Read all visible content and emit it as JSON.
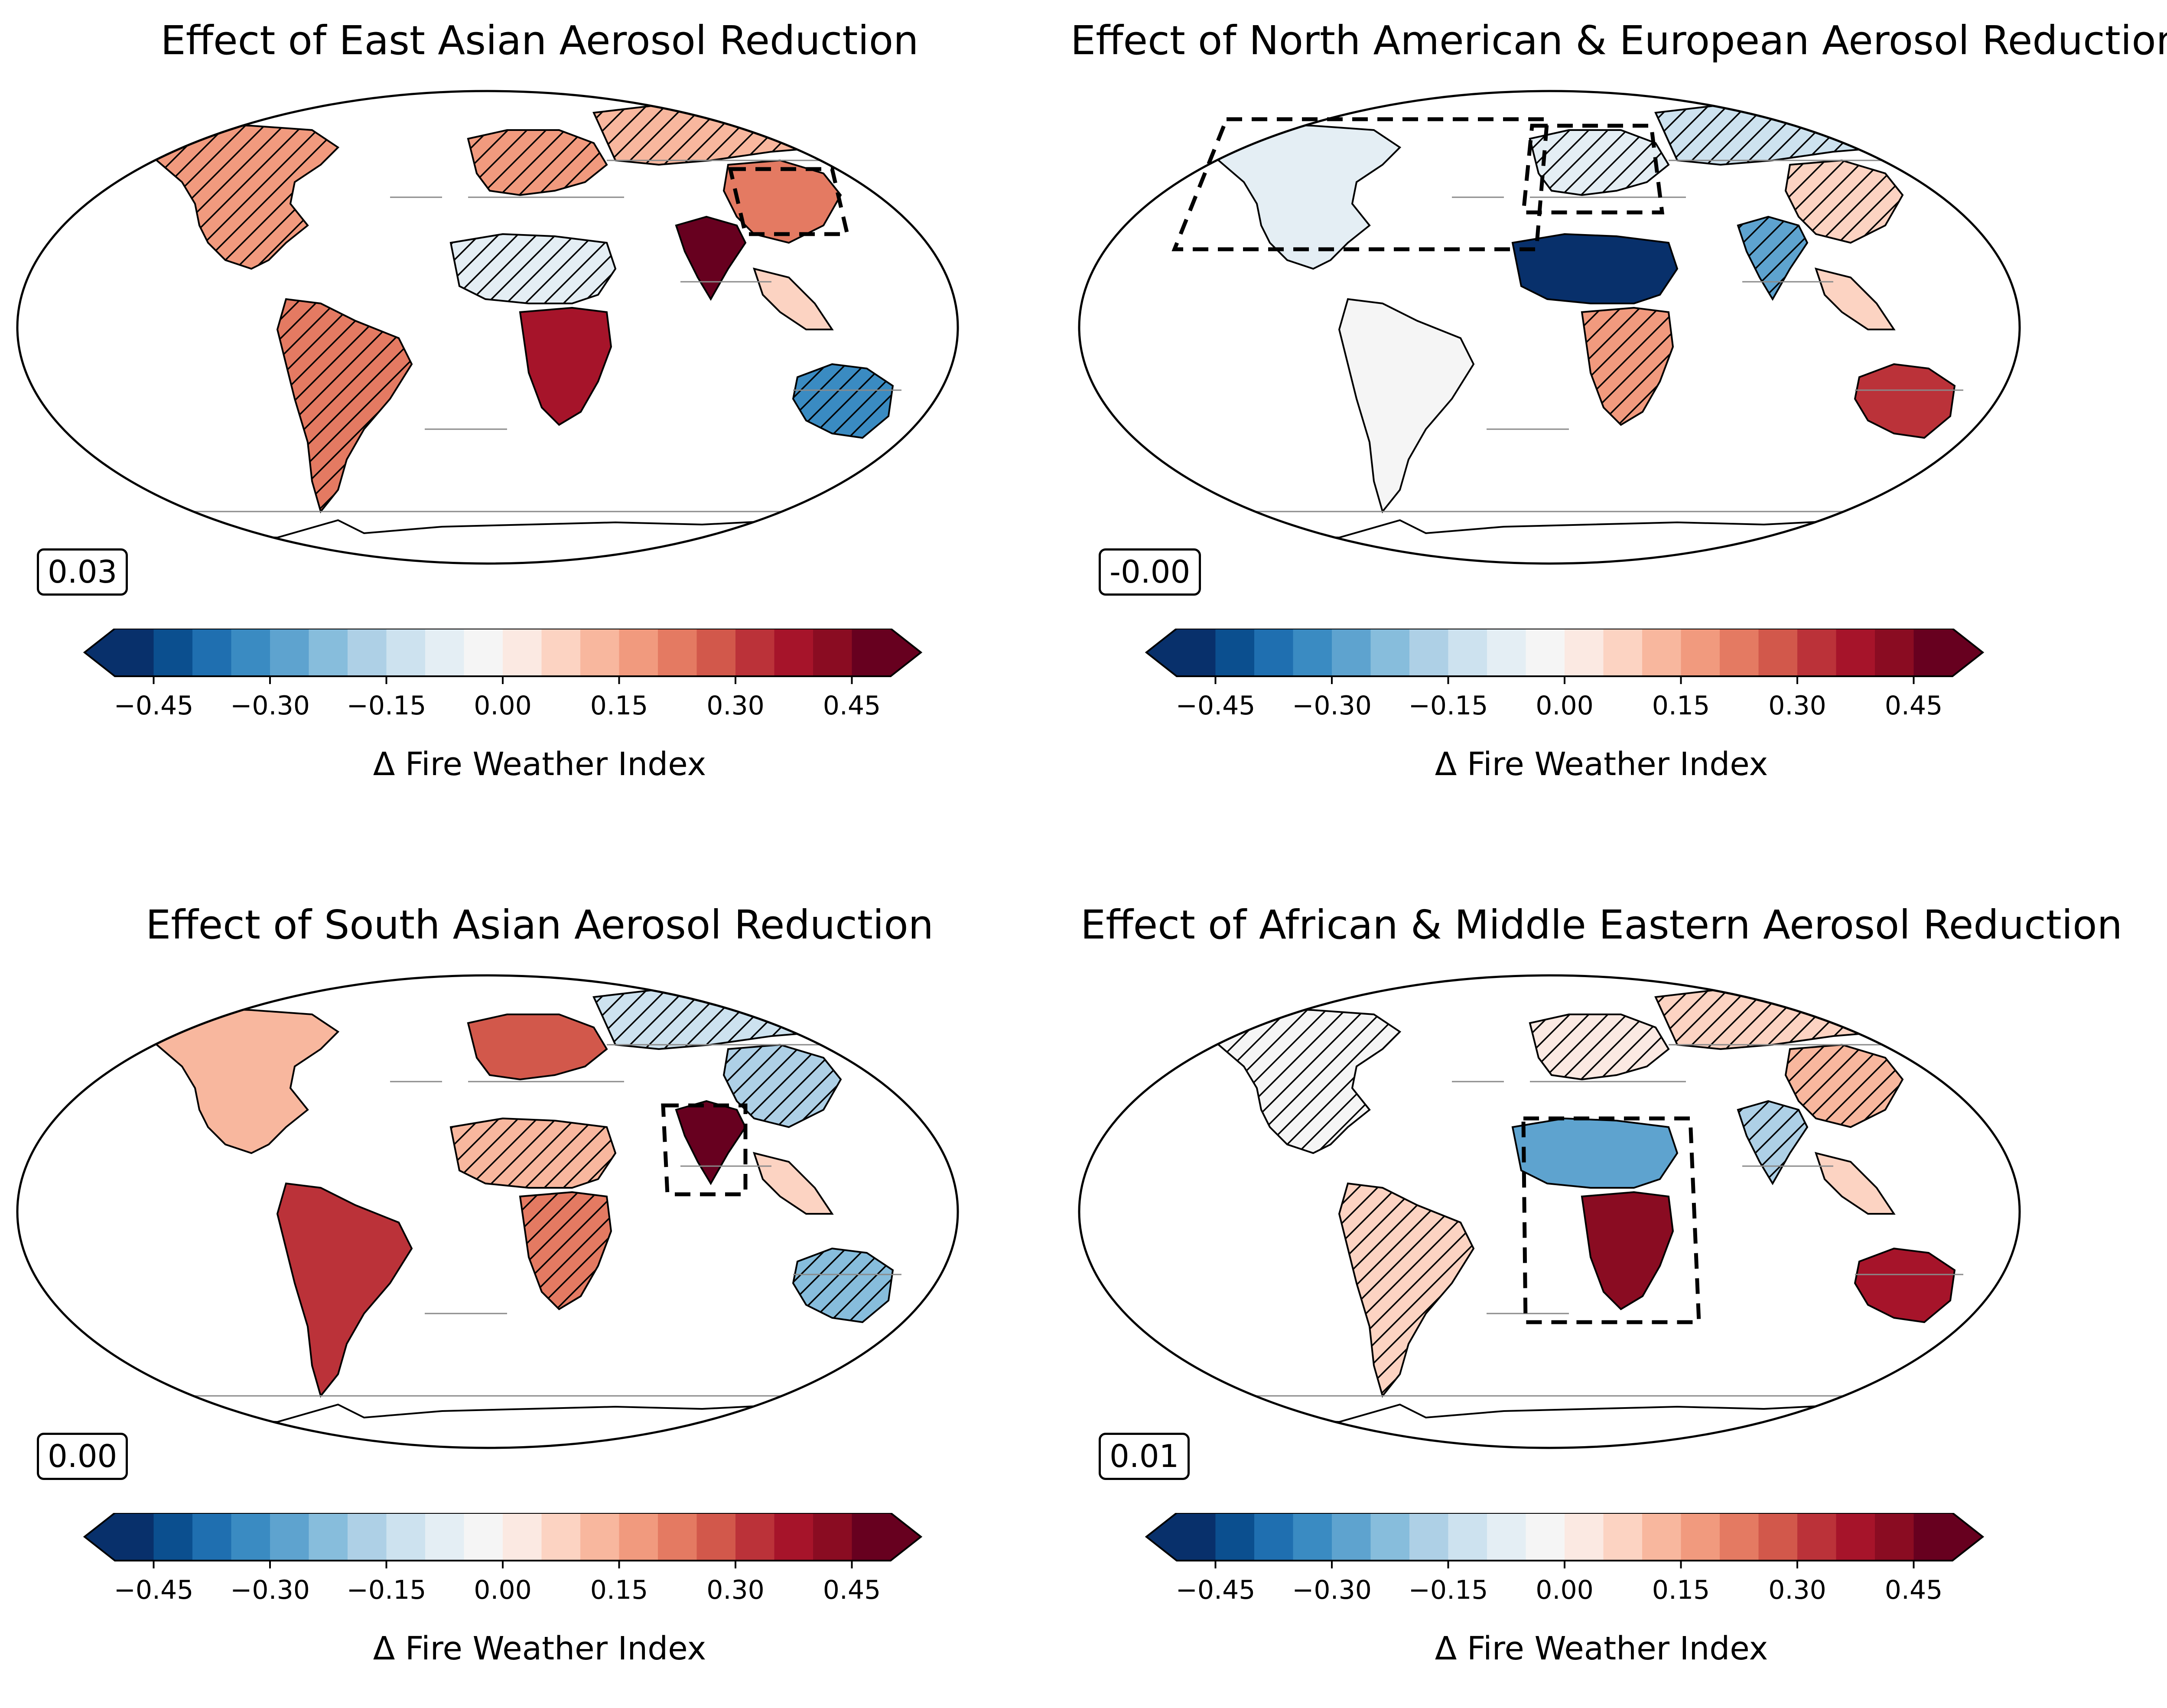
{
  "panels": [
    {
      "title": "Effect of East Asian Aerosol Reduction",
      "global_mean": "0.03",
      "colorbar_label": "Δ Fire Weather Index",
      "colorbar_ticks": [
        "−0.45",
        "−0.30",
        "−0.15",
        "0.00",
        "0.15",
        "0.30",
        "0.45"
      ],
      "target_region": "east-asia"
    },
    {
      "title": "Effect of North American & European Aerosol Reduction",
      "global_mean": "-0.00",
      "colorbar_label": "Δ Fire Weather Index",
      "colorbar_ticks": [
        "−0.45",
        "−0.30",
        "−0.15",
        "0.00",
        "0.15",
        "0.30",
        "0.45"
      ],
      "target_region": "north-america-europe"
    },
    {
      "title": "Effect of South Asian Aerosol Reduction",
      "global_mean": "0.00",
      "colorbar_label": "Δ Fire Weather Index",
      "colorbar_ticks": [
        "−0.45",
        "−0.30",
        "−0.15",
        "0.00",
        "0.15",
        "0.30",
        "0.45"
      ],
      "target_region": "south-asia"
    },
    {
      "title": "Effect of African & Middle Eastern Aerosol Reduction",
      "global_mean": "0.01",
      "colorbar_label": "Δ Fire Weather Index",
      "colorbar_ticks": [
        "−0.45",
        "−0.30",
        "−0.15",
        "0.00",
        "0.15",
        "0.30",
        "0.45"
      ],
      "target_region": "africa-middle-east"
    }
  ],
  "colormap": {
    "name": "RdBu_r",
    "levels": [
      -0.5,
      0.5
    ],
    "colors": [
      "#08306b",
      "#0b4f8f",
      "#1f6fb0",
      "#3a8bc2",
      "#5ea3cf",
      "#87bddc",
      "#aed0e6",
      "#cde2ef",
      "#e4eef4",
      "#f5f5f5",
      "#fbe9e2",
      "#fcd3c2",
      "#f8b79e",
      "#f19a7e",
      "#e47a62",
      "#d2584b",
      "#bb3239",
      "#a6142a",
      "#8a0c22",
      "#67001f"
    ]
  },
  "regions": {
    "north-america": {
      "values": [
        0.18,
        -0.08,
        0.12,
        -0.05
      ],
      "sig": [
        true,
        false,
        false,
        true
      ]
    },
    "south-america": {
      "values": [
        0.2,
        -0.05,
        0.3,
        0.05
      ],
      "sig": [
        true,
        false,
        false,
        true
      ]
    },
    "europe": {
      "values": [
        0.15,
        -0.1,
        0.25,
        0.02
      ],
      "sig": [
        true,
        true,
        false,
        true
      ]
    },
    "north-asia": {
      "values": [
        0.1,
        -0.12,
        -0.15,
        0.05
      ],
      "sig": [
        true,
        true,
        true,
        true
      ]
    },
    "south-asia": {
      "values": [
        0.55,
        -0.3,
        0.55,
        -0.2
      ],
      "sig": [
        false,
        true,
        false,
        true
      ]
    },
    "east-asia": {
      "values": [
        0.2,
        0.05,
        -0.2,
        0.1
      ],
      "sig": [
        false,
        true,
        true,
        true
      ]
    },
    "north-africa": {
      "values": [
        -0.1,
        -0.45,
        0.1,
        -0.3
      ],
      "sig": [
        true,
        false,
        true,
        false
      ]
    },
    "south-africa": {
      "values": [
        0.35,
        0.15,
        0.2,
        0.4
      ],
      "sig": [
        false,
        true,
        true,
        false
      ]
    },
    "australia": {
      "values": [
        -0.35,
        0.3,
        -0.25,
        0.35
      ],
      "sig": [
        true,
        false,
        true,
        false
      ]
    },
    "southeast-asia": {
      "values": [
        0.08,
        0.05,
        0.05,
        0.05
      ],
      "sig": [
        false,
        false,
        false,
        false
      ]
    }
  }
}
